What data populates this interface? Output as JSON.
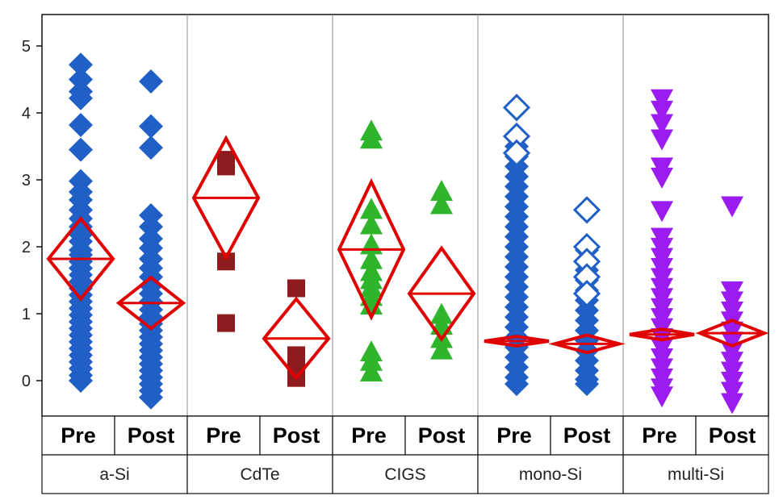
{
  "chart_data": {
    "type": "scatter",
    "title": "",
    "xlabel": "",
    "ylabel": "",
    "ylim": [
      -0.5,
      5.4
    ],
    "yticks": [
      0,
      1,
      2,
      3,
      4,
      5
    ],
    "grid": false,
    "legend": "none",
    "categories": [
      "a-Si",
      "CdTe",
      "CIGS",
      "mono-Si",
      "multi-Si"
    ],
    "periods": [
      "Pre",
      "Post"
    ],
    "diamond_color": "#e00000",
    "groups": [
      {
        "name": "a-Si",
        "marker": "diamond",
        "color": "#1f5fc6",
        "filled": true,
        "pre": {
          "mean": 1.82,
          "ci": [
            1.22,
            2.42
          ],
          "values": [
            4.72,
            4.5,
            4.32,
            4.22,
            3.82,
            3.45,
            2.98,
            2.82,
            2.7,
            2.55,
            2.42,
            2.3,
            2.18,
            2.08,
            1.95,
            1.88,
            1.78,
            1.68,
            1.58,
            1.48,
            1.38,
            1.28,
            1.18,
            1.08,
            0.98,
            0.88,
            0.78,
            0.68,
            0.58,
            0.48,
            0.38,
            0.28,
            0.18,
            0.08,
            0.0
          ]
        },
        "post": {
          "mean": 1.16,
          "ci": [
            0.78,
            1.54
          ],
          "values": [
            4.47,
            3.8,
            3.48,
            2.47,
            2.3,
            2.12,
            1.98,
            1.82,
            1.68,
            1.55,
            1.42,
            1.3,
            1.18,
            1.06,
            0.95,
            0.85,
            0.75,
            0.65,
            0.55,
            0.45,
            0.35,
            0.25,
            0.15,
            0.05,
            -0.05,
            -0.15,
            -0.25
          ]
        }
      },
      {
        "name": "CdTe",
        "marker": "square",
        "color": "#8e1b1e",
        "filled": true,
        "pre": {
          "mean": 2.73,
          "ci": [
            1.84,
            3.62
          ],
          "values": [
            3.3,
            3.2,
            1.78,
            0.86
          ]
        },
        "post": {
          "mean": 0.63,
          "ci": [
            0.04,
            1.22
          ],
          "values": [
            1.38,
            0.38,
            0.25,
            0.12,
            0.04
          ]
        }
      },
      {
        "name": "CIGS",
        "marker": "triangle-up",
        "color": "#2fb52b",
        "filled": true,
        "pre": {
          "mean": 1.96,
          "ci": [
            0.95,
            2.97
          ],
          "values": [
            3.72,
            3.6,
            2.55,
            2.32,
            2.02,
            1.8,
            1.62,
            1.5,
            1.38,
            1.25,
            1.12,
            0.42,
            0.28,
            0.12
          ]
        },
        "post": {
          "mean": 1.3,
          "ci": [
            0.62,
            1.98
          ],
          "values": [
            2.82,
            2.62,
            0.98,
            0.82,
            0.62,
            0.45
          ]
        }
      },
      {
        "name": "mono-Si",
        "marker": "diamond",
        "color": "#1f5fc6",
        "filled": true,
        "pre": {
          "mean": 0.59,
          "ci": [
            0.52,
            0.66
          ],
          "values": [
            3.65,
            3.5,
            3.35,
            3.2,
            3.05,
            2.9,
            2.75,
            2.6,
            2.45,
            2.3,
            2.15,
            2.0,
            1.85,
            1.7,
            1.55,
            1.4,
            1.25,
            1.1,
            0.95,
            0.8,
            0.65,
            0.5,
            0.35,
            0.2,
            0.05,
            -0.05
          ],
          "open_values": [
            4.08,
            3.65,
            3.4
          ]
        },
        "post": {
          "mean": 0.55,
          "ci": [
            0.42,
            0.68
          ],
          "values": [
            1.95,
            1.8,
            1.65,
            1.5,
            1.35,
            1.2,
            1.05,
            0.9,
            0.75,
            0.6,
            0.45,
            0.3,
            0.15,
            0.02,
            -0.05
          ],
          "open_values": [
            2.55,
            2.0,
            1.78,
            1.55,
            1.3
          ]
        }
      },
      {
        "name": "multi-Si",
        "marker": "triangle-down",
        "color": "#9b1bf0",
        "filled": true,
        "pre": {
          "mean": 0.69,
          "ci": [
            0.61,
            0.77
          ],
          "values": [
            4.22,
            4.05,
            3.85,
            3.62,
            3.2,
            3.05,
            2.55,
            2.15,
            2.0,
            1.85,
            1.7,
            1.55,
            1.4,
            1.25,
            1.1,
            0.95,
            0.8,
            0.65,
            0.5,
            0.35,
            0.2,
            0.05,
            -0.1,
            -0.22
          ]
        },
        "post": {
          "mean": 0.71,
          "ci": [
            0.52,
            0.9
          ],
          "values": [
            2.62,
            1.35,
            1.2,
            1.05,
            0.9,
            0.75,
            0.6,
            0.45,
            0.3,
            0.15,
            0.0,
            -0.15,
            -0.32
          ]
        }
      }
    ]
  }
}
